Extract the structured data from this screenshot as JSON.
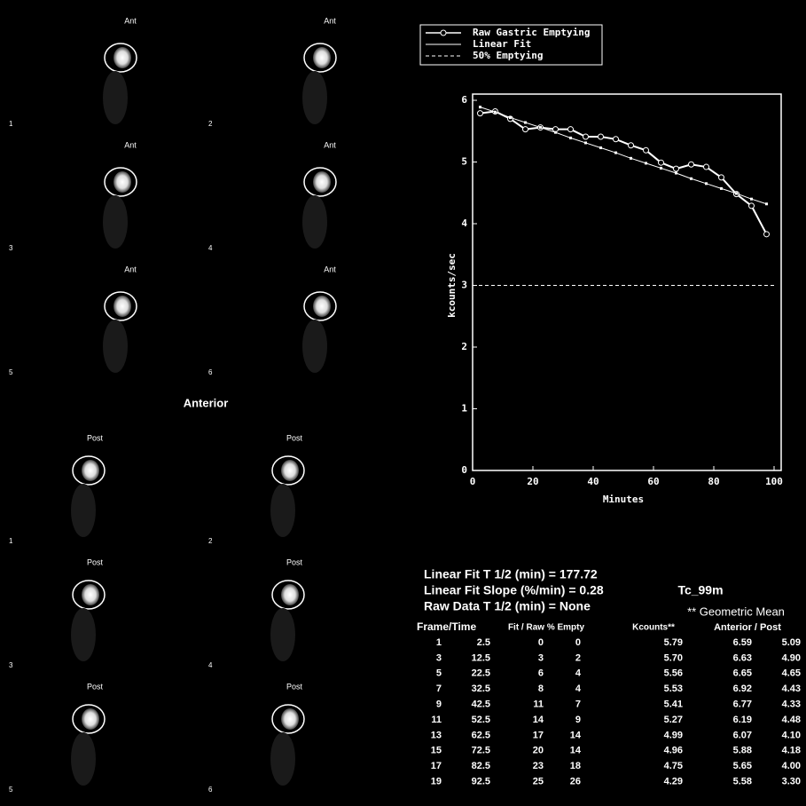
{
  "images": {
    "anterior": {
      "label": "Ant",
      "title": "Anterior",
      "frames": [
        "1",
        "2",
        "3",
        "4",
        "5",
        "6"
      ]
    },
    "posterior": {
      "label": "Post",
      "frames": [
        "1",
        "2",
        "3",
        "4",
        "5",
        "6"
      ]
    }
  },
  "chart_data": {
    "type": "line",
    "x_label": "Minutes",
    "y_label": "kcounts/sec",
    "x": [
      2.5,
      7.5,
      12.5,
      17.5,
      22.5,
      27.5,
      32.5,
      37.5,
      42.5,
      47.5,
      52.5,
      57.5,
      62.5,
      67.5,
      72.5,
      77.5,
      82.5,
      87.5,
      92.5,
      97.5
    ],
    "series": [
      {
        "name": "Raw Gastric Emptying",
        "color": "#ffffff",
        "values": [
          5.79,
          5.82,
          5.7,
          5.53,
          5.56,
          5.53,
          5.53,
          5.41,
          5.41,
          5.37,
          5.27,
          5.19,
          4.99,
          4.89,
          4.96,
          4.92,
          4.75,
          4.48,
          4.29,
          3.83
        ]
      },
      {
        "name": "Linear Fit",
        "color": "#ffffff",
        "values": [
          5.89,
          5.81,
          5.72,
          5.64,
          5.56,
          5.48,
          5.39,
          5.31,
          5.23,
          5.15,
          5.06,
          4.98,
          4.9,
          4.82,
          4.73,
          4.65,
          4.57,
          4.49,
          4.4,
          4.32
        ]
      },
      {
        "name": "50% Emptying",
        "color": "#ffffff",
        "x": [
          0,
          100
        ],
        "values": [
          3,
          3
        ]
      }
    ],
    "xlim": [
      0,
      100
    ],
    "xticks": [
      0,
      20,
      40,
      60,
      80,
      100
    ],
    "ylim": [
      0,
      6
    ],
    "yticks": [
      0,
      1,
      2,
      3,
      4,
      5,
      6
    ]
  },
  "stats": [
    "Linear Fit T 1/2 (min) = 177.72",
    "Linear Fit Slope (%/min) = 0.28",
    "Raw Data T 1/2 (min) = None"
  ],
  "isotope": "Tc_99m",
  "geometric_mean": "** Geometric Mean",
  "table": {
    "headers": [
      "Frame/Time",
      "Fit / Raw % Empty",
      "Kcounts**",
      "Anterior / Post"
    ],
    "rows": [
      [
        "1",
        "2.5",
        "0",
        "0",
        "5.79",
        "6.59",
        "5.09"
      ],
      [
        "3",
        "12.5",
        "3",
        "2",
        "5.70",
        "6.63",
        "4.90"
      ],
      [
        "5",
        "22.5",
        "6",
        "4",
        "5.56",
        "6.65",
        "4.65"
      ],
      [
        "7",
        "32.5",
        "8",
        "4",
        "5.53",
        "6.92",
        "4.43"
      ],
      [
        "9",
        "42.5",
        "11",
        "7",
        "5.41",
        "6.77",
        "4.33"
      ],
      [
        "11",
        "52.5",
        "14",
        "9",
        "5.27",
        "6.19",
        "4.48"
      ],
      [
        "13",
        "62.5",
        "17",
        "14",
        "4.99",
        "6.07",
        "4.10"
      ],
      [
        "15",
        "72.5",
        "20",
        "14",
        "4.96",
        "5.88",
        "4.18"
      ],
      [
        "17",
        "82.5",
        "23",
        "18",
        "4.75",
        "5.65",
        "4.00"
      ],
      [
        "19",
        "92.5",
        "25",
        "26",
        "4.29",
        "5.58",
        "3.30"
      ]
    ]
  }
}
